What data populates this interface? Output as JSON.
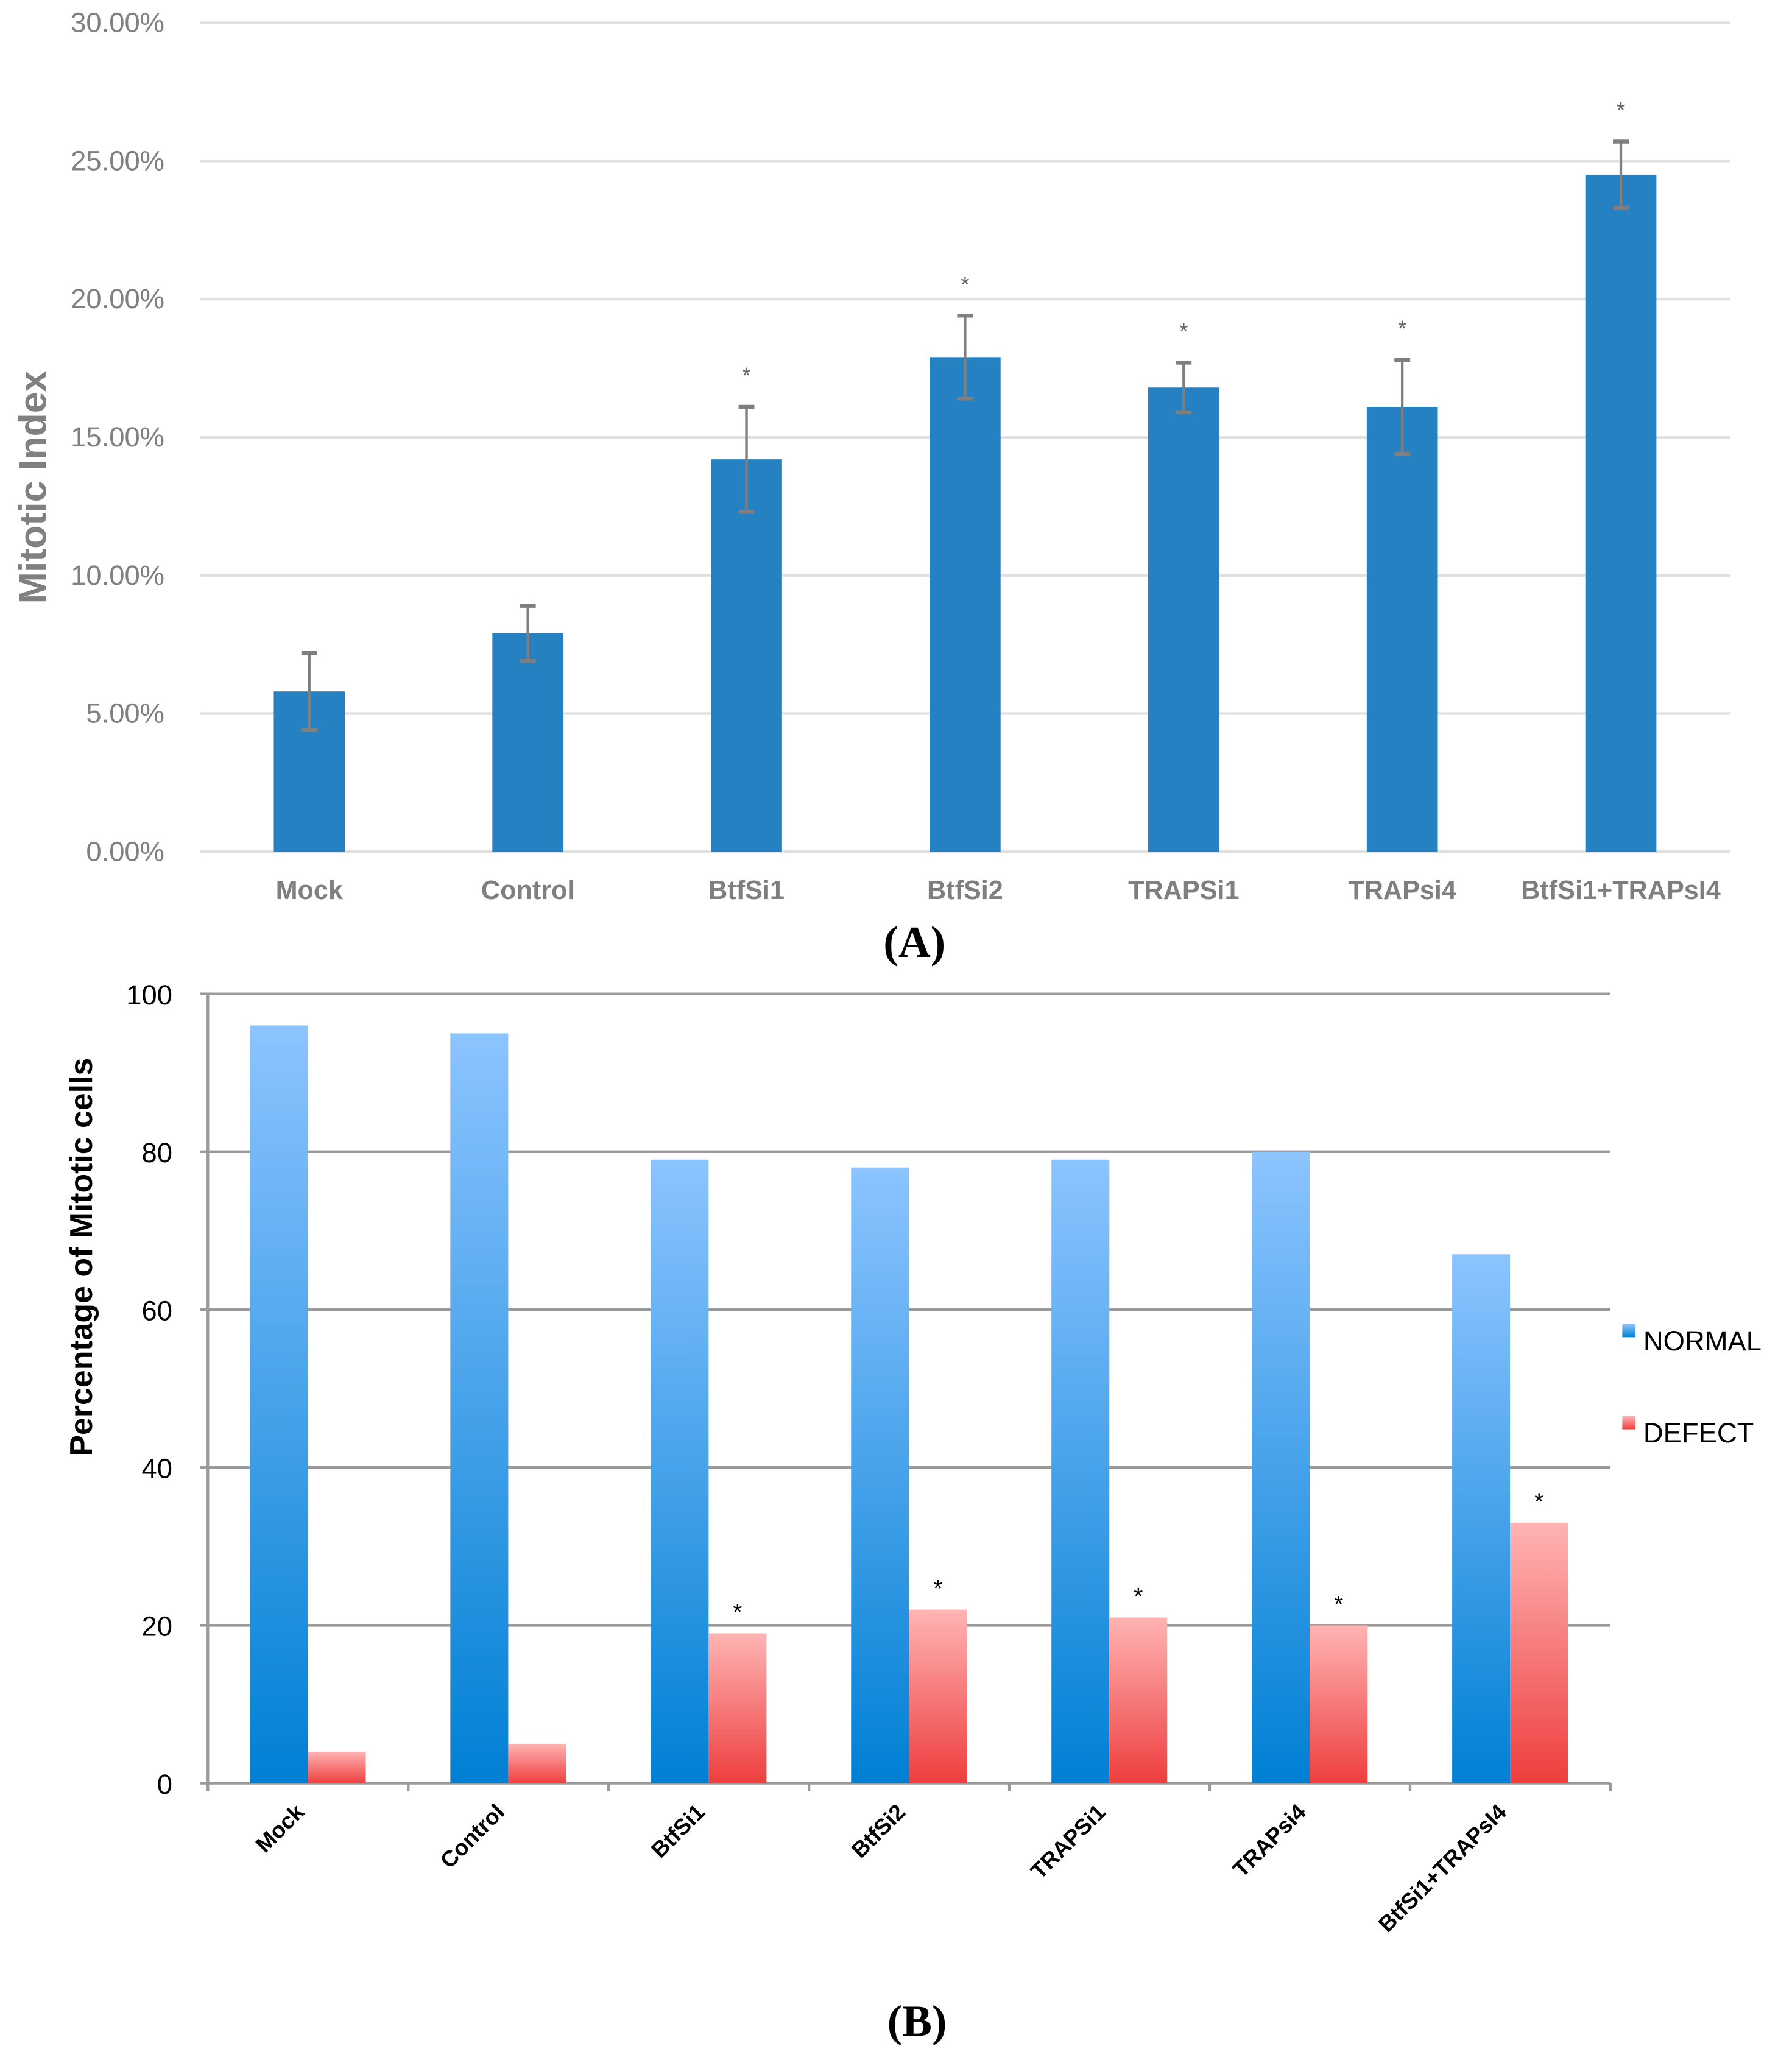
{
  "chart_data": [
    {
      "type": "bar",
      "panel_label": "(A)",
      "ylabel": "Mitotic  Index",
      "xlabel": "",
      "ylim": [
        0,
        0.3
      ],
      "yticks": [
        "0.00%",
        "5.00%",
        "10.00%",
        "15.00%",
        "20.00%",
        "25.00%",
        "30.00%"
      ],
      "grid": true,
      "categories": [
        "Mock",
        "Control",
        "BtfSi1",
        "BtfSi2",
        "TRAPSi1",
        "TRAPsi4",
        "BtfSi1+TRAPsI4"
      ],
      "values": [
        0.058,
        0.079,
        0.142,
        0.179,
        0.168,
        0.161,
        0.245
      ],
      "error": [
        0.014,
        0.01,
        0.019,
        0.015,
        0.009,
        0.017,
        0.012
      ],
      "annotations": [
        "",
        "",
        "*",
        "*",
        "*",
        "*",
        "*"
      ],
      "color": "#2581c2"
    },
    {
      "type": "bar",
      "panel_label": "(B)",
      "ylabel": "Percentage of Mitotic cells",
      "xlabel": "",
      "ylim": [
        0,
        100
      ],
      "yticks": [
        "0",
        "20",
        "40",
        "60",
        "80",
        "100"
      ],
      "grid": true,
      "legend": "right",
      "categories": [
        "Mock",
        "Control",
        "BtfSi1",
        "BtfSi2",
        "TRAPSi1",
        "TRAPsi4",
        "BtfSi1+TRAPsI4"
      ],
      "series": [
        {
          "name": "NORMAL",
          "values": [
            96,
            95,
            79,
            78,
            79,
            80,
            67
          ],
          "color": "#1a8ee0"
        },
        {
          "name": "DEFECT",
          "values": [
            4,
            5,
            19,
            22,
            21,
            20,
            33
          ],
          "color": "#f56060"
        }
      ],
      "annotations": [
        "",
        "",
        "*",
        "*",
        "*",
        "*",
        "*"
      ]
    }
  ]
}
